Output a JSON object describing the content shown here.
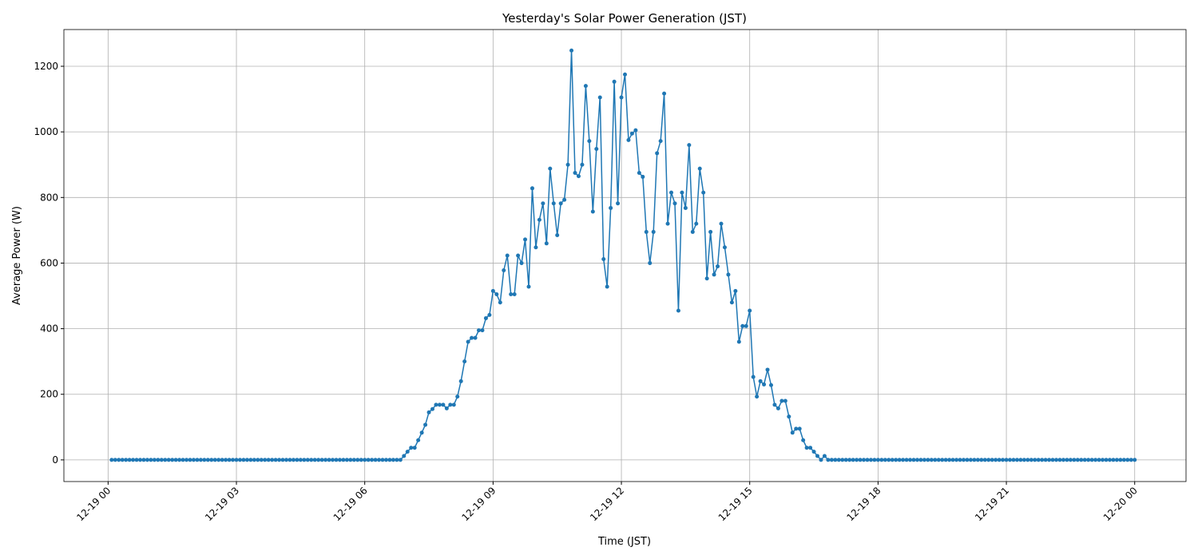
{
  "chart_data": {
    "type": "line",
    "title": "Yesterday's Solar Power Generation (JST)",
    "xlabel": "Time (JST)",
    "ylabel": "Average Power (W)",
    "x": [
      5,
      10,
      15,
      20,
      25,
      30,
      35,
      40,
      45,
      50,
      55,
      60,
      65,
      70,
      75,
      80,
      85,
      90,
      95,
      100,
      105,
      110,
      115,
      120,
      125,
      130,
      135,
      140,
      145,
      150,
      155,
      160,
      165,
      170,
      175,
      180,
      185,
      190,
      195,
      200,
      205,
      210,
      215,
      220,
      225,
      230,
      235,
      240,
      245,
      250,
      255,
      260,
      265,
      270,
      275,
      280,
      285,
      290,
      295,
      300,
      305,
      310,
      315,
      320,
      325,
      330,
      335,
      340,
      345,
      350,
      355,
      360,
      365,
      370,
      375,
      380,
      385,
      390,
      395,
      400,
      405,
      410,
      415,
      420,
      425,
      430,
      435,
      440,
      445,
      450,
      455,
      460,
      465,
      470,
      475,
      480,
      485,
      490,
      495,
      500,
      505,
      510,
      515,
      520,
      525,
      530,
      535,
      540,
      545,
      550,
      555,
      560,
      565,
      570,
      575,
      580,
      585,
      590,
      595,
      600,
      605,
      610,
      615,
      620,
      625,
      630,
      635,
      640,
      645,
      650,
      655,
      660,
      665,
      670,
      675,
      680,
      685,
      690,
      695,
      700,
      705,
      710,
      715,
      720,
      725,
      730,
      735,
      740,
      745,
      750,
      755,
      760,
      765,
      770,
      775,
      780,
      785,
      790,
      795,
      800,
      805,
      810,
      815,
      820,
      825,
      830,
      835,
      840,
      845,
      850,
      855,
      860,
      865,
      870,
      875,
      880,
      885,
      890,
      895,
      900,
      905,
      910,
      915,
      920,
      925,
      930,
      935,
      940,
      945,
      950,
      955,
      960,
      965,
      970,
      975,
      980,
      985,
      990,
      995,
      1000,
      1005,
      1010,
      1015,
      1020,
      1025,
      1030,
      1035,
      1040,
      1045,
      1050,
      1055,
      1060,
      1065,
      1070,
      1075,
      1080,
      1085,
      1090,
      1095,
      1100,
      1105,
      1110,
      1115,
      1120,
      1125,
      1130,
      1135,
      1140,
      1145,
      1150,
      1155,
      1160,
      1165,
      1170,
      1175,
      1180,
      1185,
      1190,
      1195,
      1200,
      1205,
      1210,
      1215,
      1220,
      1225,
      1230,
      1235,
      1240,
      1245,
      1250,
      1255,
      1260,
      1265,
      1270,
      1275,
      1280,
      1285,
      1290,
      1295,
      1300,
      1305,
      1310,
      1315,
      1320,
      1325,
      1330,
      1335,
      1340,
      1345,
      1350,
      1355,
      1360,
      1365,
      1370,
      1375,
      1380,
      1385,
      1390,
      1395,
      1400,
      1405,
      1410,
      1415,
      1420,
      1425,
      1430,
      1435,
      1440
    ],
    "values": [
      0,
      0,
      0,
      0,
      0,
      0,
      0,
      0,
      0,
      0,
      0,
      0,
      0,
      0,
      0,
      0,
      0,
      0,
      0,
      0,
      0,
      0,
      0,
      0,
      0,
      0,
      0,
      0,
      0,
      0,
      0,
      0,
      0,
      0,
      0,
      0,
      0,
      0,
      0,
      0,
      0,
      0,
      0,
      0,
      0,
      0,
      0,
      0,
      0,
      0,
      0,
      0,
      0,
      0,
      0,
      0,
      0,
      0,
      0,
      0,
      0,
      0,
      0,
      0,
      0,
      0,
      0,
      0,
      0,
      0,
      0,
      0,
      0,
      0,
      0,
      0,
      0,
      0,
      0,
      0,
      0,
      0,
      12,
      25,
      37,
      37,
      60,
      83,
      107,
      145,
      155,
      168,
      168,
      168,
      157,
      168,
      168,
      193,
      240,
      300,
      360,
      372,
      372,
      395,
      395,
      432,
      442,
      515,
      505,
      480,
      578,
      623,
      505,
      505,
      623,
      600,
      672,
      528,
      828,
      648,
      732,
      782,
      660,
      888,
      782,
      685,
      782,
      793,
      900,
      1248,
      875,
      865,
      900,
      1140,
      972,
      757,
      948,
      1105,
      612,
      528,
      768,
      1153,
      782,
      1105,
      1175,
      975,
      995,
      1005,
      875,
      863,
      695,
      600,
      695,
      935,
      972,
      1117,
      720,
      815,
      782,
      455,
      815,
      768,
      960,
      695,
      720,
      888,
      815,
      553,
      695,
      565,
      590,
      720,
      648,
      565,
      480,
      515,
      360,
      408,
      408,
      455,
      253,
      193,
      240,
      230,
      275,
      228,
      168,
      157,
      180,
      180,
      132,
      83,
      95,
      95,
      60,
      37,
      37,
      25,
      12,
      0,
      12,
      0,
      0,
      0,
      0,
      0,
      0,
      0,
      0,
      0,
      0,
      0,
      0,
      0,
      0,
      0,
      0,
      0,
      0,
      0,
      0,
      0,
      0,
      0,
      0,
      0,
      0,
      0,
      0,
      0,
      0,
      0,
      0,
      0,
      0,
      0,
      0,
      0,
      0,
      0,
      0,
      0,
      0,
      0,
      0,
      0,
      0,
      0,
      0,
      0,
      0,
      0,
      0,
      0,
      0,
      0,
      0,
      0,
      0,
      0,
      0,
      0,
      0,
      0,
      0,
      0,
      0,
      0,
      0,
      0,
      0,
      0,
      0,
      0,
      0,
      0,
      0,
      0,
      0,
      0,
      0,
      0,
      0,
      0,
      0,
      0,
      0,
      0
    ],
    "color": "#1f77b4",
    "marker": true,
    "grid": true,
    "xlim": [
      -62,
      1512
    ],
    "xticks": [
      {
        "value": 0,
        "label": "12-19 00"
      },
      {
        "value": 180,
        "label": "12-19 03"
      },
      {
        "value": 360,
        "label": "12-19 06"
      },
      {
        "value": 540,
        "label": "12-19 09"
      },
      {
        "value": 720,
        "label": "12-19 12"
      },
      {
        "value": 900,
        "label": "12-19 15"
      },
      {
        "value": 1080,
        "label": "12-19 18"
      },
      {
        "value": 1260,
        "label": "12-19 21"
      },
      {
        "value": 1440,
        "label": "12-20 00"
      }
    ],
    "ylim": [
      -66,
      1312
    ],
    "yticks": [
      0,
      200,
      400,
      600,
      800,
      1000,
      1200
    ]
  }
}
